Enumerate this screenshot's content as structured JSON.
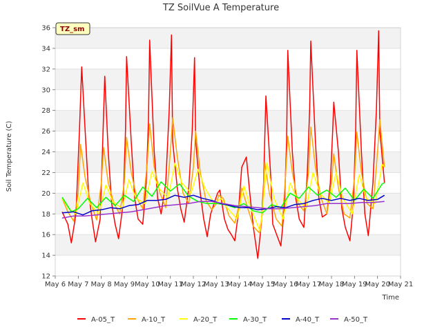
{
  "chart_data": {
    "type": "line",
    "title": "TZ SoilVue A Temperature",
    "site_tag": "TZ_sm",
    "xlabel": "Time",
    "ylabel": "Soil Temperature (C)",
    "x_ticks": [
      "May 6",
      "May 7",
      "May 8",
      "May 9",
      "May 10",
      "May 11",
      "May 12",
      "May 13",
      "May 14",
      "May 15",
      "May 16",
      "May 17",
      "May 18",
      "May 19",
      "May 20",
      "May 21"
    ],
    "xlim": [
      6,
      21
    ],
    "ylim": [
      12,
      36
    ],
    "y_ticks": [
      12,
      14,
      16,
      18,
      20,
      22,
      24,
      26,
      28,
      30,
      32,
      34,
      36
    ],
    "grid": true,
    "legend_position": "bottom",
    "series": [
      {
        "name": "A-05_T",
        "color": "#ff0000",
        "x": [
          6.3,
          6.55,
          6.7,
          6.9,
          7.05,
          7.15,
          7.3,
          7.45,
          7.6,
          7.75,
          7.95,
          8.05,
          8.15,
          8.3,
          8.45,
          8.6,
          8.75,
          8.95,
          9.05,
          9.1,
          9.3,
          9.45,
          9.6,
          9.8,
          9.95,
          10.05,
          10.1,
          10.3,
          10.45,
          10.6,
          10.8,
          10.95,
          11.05,
          11.1,
          11.3,
          11.45,
          11.6,
          11.8,
          11.95,
          12.05,
          12.1,
          12.3,
          12.45,
          12.6,
          12.75,
          12.9,
          13.05,
          13.15,
          13.35,
          13.5,
          13.65,
          13.8,
          13.95,
          14.1,
          14.3,
          14.45,
          14.6,
          14.8,
          14.95,
          15.05,
          15.15,
          15.35,
          15.45,
          15.65,
          15.8,
          15.95,
          16.05,
          16.1,
          16.3,
          16.45,
          16.6,
          16.8,
          16.95,
          17.05,
          17.1,
          17.3,
          17.45,
          17.6,
          17.8,
          17.95,
          18.05,
          18.1,
          18.3,
          18.45,
          18.6,
          18.8,
          18.95,
          19.05,
          19.1,
          19.3,
          19.45,
          19.6,
          19.8,
          19.95,
          20.05,
          20.1,
          20.3
        ],
        "y": [
          18.2,
          17.0,
          15.2,
          18.0,
          26.0,
          32.2,
          26.0,
          20.0,
          17.5,
          15.3,
          17.5,
          24.0,
          31.3,
          24.0,
          19.0,
          17.0,
          15.6,
          19.0,
          26.0,
          33.2,
          25.0,
          19.5,
          17.5,
          17.0,
          21.0,
          27.0,
          34.8,
          24.0,
          19.5,
          18.0,
          21.0,
          28.0,
          35.3,
          25.0,
          20.5,
          18.5,
          17.2,
          20.5,
          26.0,
          33.1,
          25.0,
          20.0,
          17.5,
          15.8,
          18.0,
          19.0,
          20.0,
          20.3,
          17.5,
          16.5,
          16.0,
          15.4,
          18.0,
          22.5,
          23.5,
          20.0,
          16.8,
          13.7,
          17.0,
          21.0,
          29.4,
          22.0,
          17.0,
          15.8,
          14.9,
          18.5,
          25.0,
          33.8,
          24.0,
          19.5,
          17.5,
          16.7,
          22.0,
          28.0,
          34.7,
          25.0,
          19.5,
          17.7,
          18.0,
          21.0,
          26.0,
          28.8,
          24.0,
          18.5,
          16.7,
          15.4,
          19.0,
          26.0,
          33.8,
          24.0,
          18.0,
          15.9,
          21.0,
          28.0,
          35.7,
          26.0,
          21.0
        ]
      },
      {
        "name": "A-10_T",
        "color": "#ffa500",
        "x": [
          6.3,
          6.55,
          6.8,
          7.0,
          7.1,
          7.3,
          7.55,
          7.8,
          8.0,
          8.1,
          8.3,
          8.55,
          8.8,
          9.0,
          9.1,
          9.3,
          9.55,
          9.8,
          10.0,
          10.1,
          10.3,
          10.55,
          10.8,
          11.0,
          11.1,
          11.3,
          11.55,
          11.8,
          12.0,
          12.1,
          12.3,
          12.55,
          12.8,
          13.0,
          13.1,
          13.3,
          13.55,
          13.8,
          14.0,
          14.1,
          14.3,
          14.6,
          14.85,
          15.0,
          15.1,
          15.3,
          15.6,
          15.85,
          16.0,
          16.1,
          16.3,
          16.55,
          16.8,
          17.0,
          17.1,
          17.3,
          17.55,
          17.8,
          18.0,
          18.1,
          18.3,
          18.55,
          18.8,
          19.0,
          19.1,
          19.3,
          19.55,
          19.8,
          20.0,
          20.1,
          20.3
        ],
        "y": [
          19.5,
          18.2,
          17.3,
          20.0,
          24.7,
          21.5,
          19.0,
          17.4,
          21.0,
          24.4,
          21.0,
          19.0,
          18.0,
          21.0,
          25.4,
          22.0,
          19.5,
          18.5,
          23.0,
          26.7,
          22.5,
          20.0,
          18.6,
          24.0,
          27.3,
          23.5,
          20.0,
          19.0,
          22.5,
          26.0,
          22.0,
          19.3,
          18.4,
          19.0,
          19.8,
          19.5,
          17.8,
          17.1,
          19.0,
          20.5,
          19.0,
          16.8,
          16.2,
          18.0,
          23.0,
          20.0,
          17.5,
          16.8,
          21.5,
          25.5,
          22.0,
          19.0,
          18.3,
          22.0,
          26.4,
          22.5,
          19.5,
          18.0,
          21.0,
          23.8,
          20.5,
          18.0,
          17.6,
          21.5,
          25.9,
          22.0,
          19.0,
          18.5,
          24.0,
          27.1,
          22.5
        ]
      },
      {
        "name": "A-20_T",
        "color": "#ffff00",
        "x": [
          6.3,
          6.6,
          6.9,
          7.2,
          7.5,
          7.9,
          8.2,
          8.5,
          8.9,
          9.2,
          9.5,
          9.9,
          10.2,
          10.5,
          10.9,
          11.2,
          11.5,
          11.9,
          12.2,
          12.5,
          12.9,
          13.2,
          13.5,
          13.9,
          14.2,
          14.5,
          14.9,
          15.2,
          15.5,
          15.9,
          16.2,
          16.5,
          16.9,
          17.2,
          17.5,
          17.9,
          18.2,
          18.5,
          18.9,
          19.2,
          19.5,
          19.9,
          20.2,
          20.3
        ],
        "y": [
          19.5,
          18.5,
          18.0,
          21.0,
          19.0,
          18.0,
          20.8,
          19.2,
          18.5,
          21.3,
          19.5,
          19.0,
          22.1,
          20.5,
          19.5,
          22.9,
          21.0,
          20.0,
          22.3,
          20.5,
          19.0,
          19.5,
          18.5,
          17.5,
          20.7,
          18.5,
          16.3,
          22.9,
          19.5,
          17.5,
          21.0,
          19.5,
          18.5,
          22.0,
          20.0,
          19.0,
          22.0,
          19.5,
          18.0,
          21.8,
          19.5,
          19.0,
          22.8,
          22.5
        ]
      },
      {
        "name": "A-30_T",
        "color": "#00ff00",
        "x": [
          6.3,
          6.7,
          7.0,
          7.4,
          7.8,
          8.2,
          8.6,
          9.0,
          9.4,
          9.8,
          10.2,
          10.6,
          11.0,
          11.4,
          11.8,
          12.2,
          12.6,
          13.0,
          13.4,
          13.8,
          14.2,
          14.6,
          15.0,
          15.4,
          15.8,
          16.2,
          16.6,
          17.0,
          17.4,
          17.8,
          18.2,
          18.6,
          19.0,
          19.4,
          19.8,
          20.2,
          20.3
        ],
        "y": [
          19.6,
          18.2,
          18.5,
          19.5,
          18.6,
          19.6,
          18.8,
          19.8,
          19.2,
          20.6,
          19.7,
          21.1,
          20.2,
          20.9,
          19.7,
          19.2,
          19.0,
          19.0,
          18.9,
          18.6,
          19.0,
          18.3,
          18.1,
          18.9,
          18.6,
          20.0,
          19.5,
          20.6,
          19.8,
          20.3,
          19.6,
          20.5,
          19.3,
          20.4,
          19.5,
          20.9,
          21.0
        ]
      },
      {
        "name": "A-40_T",
        "color": "#0000cd",
        "x": [
          6.3,
          6.8,
          7.2,
          7.6,
          8.0,
          8.4,
          8.8,
          9.2,
          9.6,
          10.0,
          10.4,
          10.8,
          11.2,
          11.6,
          12.0,
          12.4,
          12.8,
          13.2,
          13.6,
          14.0,
          14.4,
          14.8,
          15.2,
          15.6,
          16.0,
          16.4,
          16.8,
          17.2,
          17.6,
          18.0,
          18.4,
          18.8,
          19.2,
          19.6,
          20.0,
          20.3
        ],
        "y": [
          18.1,
          18.2,
          17.9,
          18.3,
          18.4,
          18.6,
          18.5,
          18.8,
          18.9,
          19.3,
          19.3,
          19.4,
          19.8,
          19.6,
          19.8,
          19.5,
          19.3,
          19.0,
          18.8,
          18.6,
          18.6,
          18.4,
          18.5,
          18.7,
          18.6,
          18.9,
          19.0,
          19.3,
          19.5,
          19.3,
          19.5,
          19.3,
          19.5,
          19.3,
          19.4,
          19.8
        ]
      },
      {
        "name": "A-50_T",
        "color": "#9932cc",
        "x": [
          6.3,
          6.8,
          7.3,
          7.8,
          8.3,
          8.8,
          9.3,
          9.8,
          10.3,
          10.8,
          11.3,
          11.8,
          12.3,
          12.8,
          13.3,
          13.8,
          14.3,
          14.8,
          15.3,
          15.8,
          16.3,
          16.8,
          17.3,
          17.8,
          18.3,
          18.8,
          19.3,
          19.8,
          20.3
        ],
        "y": [
          17.6,
          17.8,
          17.8,
          17.9,
          18.0,
          18.1,
          18.2,
          18.4,
          18.6,
          18.8,
          18.9,
          19.0,
          19.2,
          19.2,
          19.0,
          18.8,
          18.7,
          18.6,
          18.5,
          18.5,
          18.6,
          18.7,
          18.8,
          19.0,
          19.0,
          19.0,
          19.1,
          19.1,
          19.2
        ]
      }
    ]
  }
}
